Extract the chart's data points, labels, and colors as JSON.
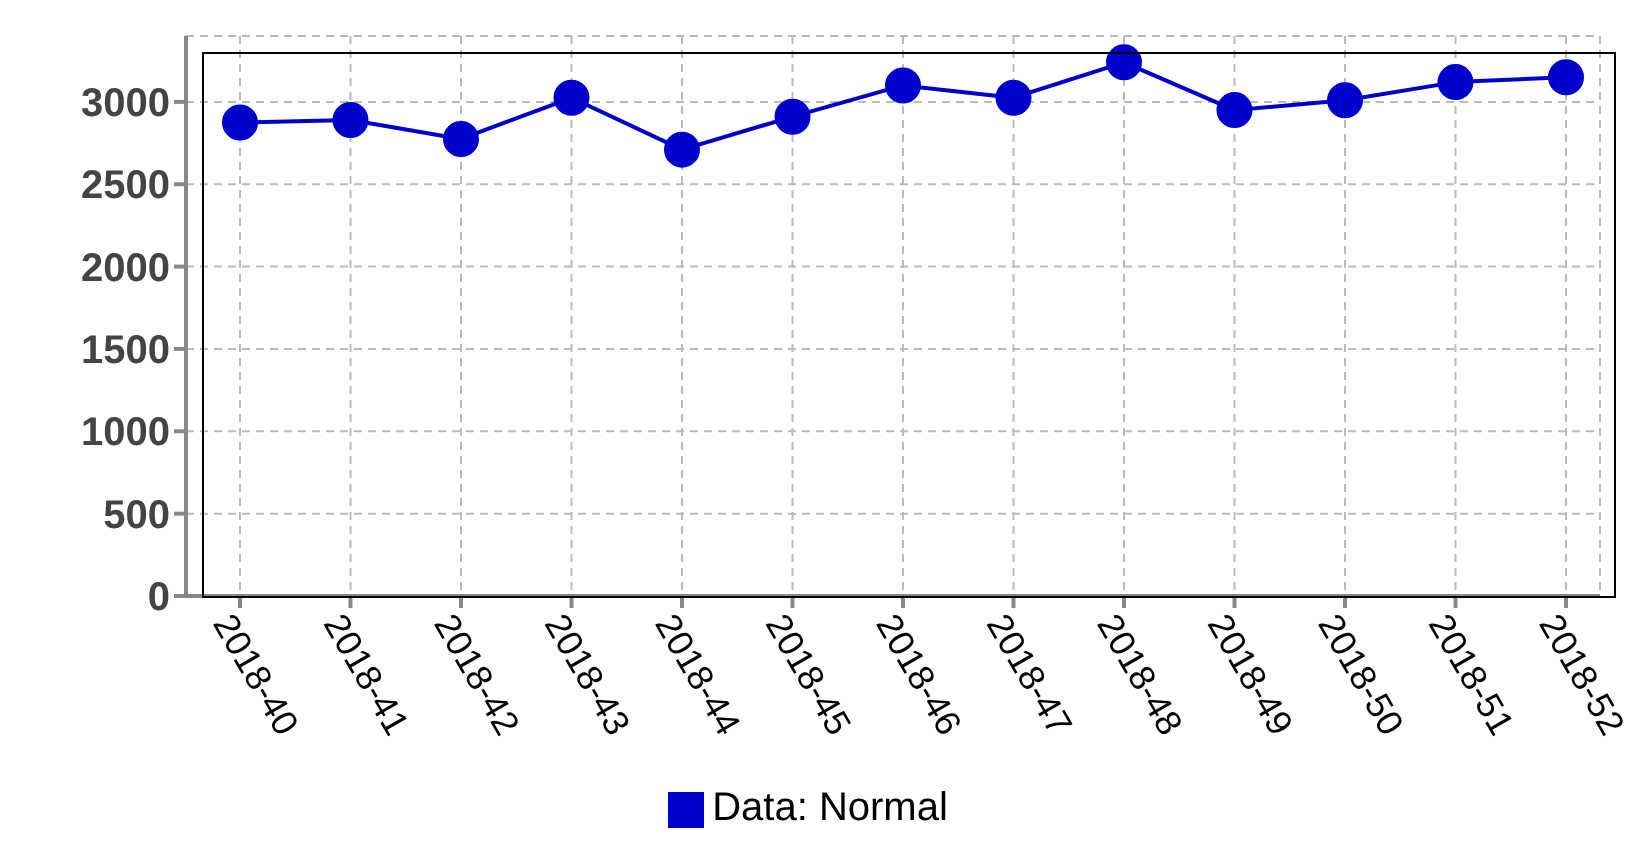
{
  "chart_data": {
    "type": "line",
    "categories": [
      "2018-40",
      "2018-41",
      "2018-42",
      "2018-43",
      "2018-44",
      "2018-45",
      "2018-46",
      "2018-47",
      "2018-48",
      "2018-49",
      "2018-50",
      "2018-51",
      "2018-52"
    ],
    "series": [
      {
        "name": "Data: Normal",
        "color": "#0000cc",
        "values": [
          2875,
          2890,
          2775,
          3025,
          2710,
          2910,
          3100,
          3025,
          3240,
          2950,
          3010,
          3120,
          3150
        ]
      }
    ],
    "ylim": [
      0,
      3400
    ],
    "yticks": [
      0,
      500,
      1000,
      1500,
      2000,
      2500,
      3000
    ],
    "grid": true,
    "legend": "bottom",
    "marker": "circle",
    "line_style": "solid"
  }
}
